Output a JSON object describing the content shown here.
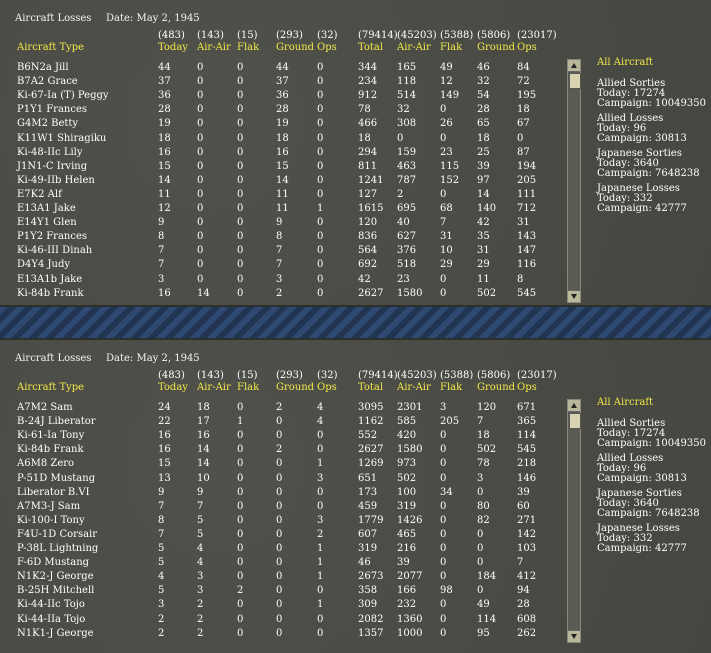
{
  "panels": [
    {
      "title": "Aircraft Losses",
      "date": "Date: May 2, 1945",
      "totals": [
        "(483)",
        "(143)",
        "(15)",
        "(293)",
        "(32)",
        "(79414)",
        "(45203)",
        "(5388)",
        "(5806)",
        "(23017)"
      ],
      "headers": [
        "Aircraft Type",
        "Today",
        "Air-Air",
        "Flak",
        "Ground",
        "Ops",
        "Total",
        "Air-Air",
        "Flak",
        "Ground",
        "Ops"
      ],
      "rows": [
        [
          "B6N2a Jill",
          "44",
          "0",
          "0",
          "44",
          "0",
          "344",
          "165",
          "49",
          "46",
          "84"
        ],
        [
          "B7A2 Grace",
          "37",
          "0",
          "0",
          "37",
          "0",
          "234",
          "118",
          "12",
          "32",
          "72"
        ],
        [
          "Ki-67-Ia (T) Peggy",
          "36",
          "0",
          "0",
          "36",
          "0",
          "912",
          "514",
          "149",
          "54",
          "195"
        ],
        [
          "P1Y1 Frances",
          "28",
          "0",
          "0",
          "28",
          "0",
          "78",
          "32",
          "0",
          "28",
          "18"
        ],
        [
          "G4M2 Betty",
          "19",
          "0",
          "0",
          "19",
          "0",
          "466",
          "308",
          "26",
          "65",
          "67"
        ],
        [
          "K11W1 Shiragiku",
          "18",
          "0",
          "0",
          "18",
          "0",
          "18",
          "0",
          "0",
          "18",
          "0"
        ],
        [
          "Ki-48-IIc Lily",
          "16",
          "0",
          "0",
          "16",
          "0",
          "294",
          "159",
          "23",
          "25",
          "87"
        ],
        [
          "J1N1-C Irving",
          "15",
          "0",
          "0",
          "15",
          "0",
          "811",
          "463",
          "115",
          "39",
          "194"
        ],
        [
          "Ki-49-IIb Helen",
          "14",
          "0",
          "0",
          "14",
          "0",
          "1241",
          "787",
          "152",
          "97",
          "205"
        ],
        [
          "E7K2 Alf",
          "11",
          "0",
          "0",
          "11",
          "0",
          "127",
          "2",
          "0",
          "14",
          "111"
        ],
        [
          "E13A1 Jake",
          "12",
          "0",
          "0",
          "11",
          "1",
          "1615",
          "695",
          "68",
          "140",
          "712"
        ],
        [
          "E14Y1 Glen",
          "9",
          "0",
          "0",
          "9",
          "0",
          "120",
          "40",
          "7",
          "42",
          "31"
        ],
        [
          "P1Y2 Frances",
          "8",
          "0",
          "0",
          "8",
          "0",
          "836",
          "627",
          "31",
          "35",
          "143"
        ],
        [
          "Ki-46-III Dinah",
          "7",
          "0",
          "0",
          "7",
          "0",
          "564",
          "376",
          "10",
          "31",
          "147"
        ],
        [
          "D4Y4 Judy",
          "7",
          "0",
          "0",
          "7",
          "0",
          "692",
          "518",
          "29",
          "29",
          "116"
        ],
        [
          "E13A1b Jake",
          "3",
          "0",
          "0",
          "3",
          "0",
          "42",
          "23",
          "0",
          "11",
          "8"
        ],
        [
          "Ki-84b Frank",
          "16",
          "14",
          "0",
          "2",
          "0",
          "2627",
          "1580",
          "0",
          "502",
          "545"
        ]
      ],
      "side": {
        "all": "All Aircraft",
        "allied_sorties": "Allied Sorties",
        "allied_sorties_today": "Today:  17274",
        "allied_sorties_campaign": "Campaign: 10049350",
        "allied_losses": "Allied Losses",
        "allied_losses_today": "Today:  96",
        "allied_losses_campaign": "Campaign: 30813",
        "jap_sorties": "Japanese Sorties",
        "jap_sorties_today": "Today:   3640",
        "jap_sorties_campaign": "Campaign: 7648238",
        "jap_losses": "Japanese Losses",
        "jap_losses_today": "Today:   332",
        "jap_losses_campaign": "Campaign: 42777"
      }
    },
    {
      "title": "Aircraft Losses",
      "date": "Date: May 2, 1945",
      "totals": [
        "(483)",
        "(143)",
        "(15)",
        "(293)",
        "(32)",
        "(79414)",
        "(45203)",
        "(5388)",
        "(5806)",
        "(23017)"
      ],
      "headers": [
        "Aircraft Type",
        "Today",
        "Air-Air",
        "Flak",
        "Ground",
        "Ops",
        "Total",
        "Air-Air",
        "Flak",
        "Ground",
        "Ops"
      ],
      "rows": [
        [
          "A7M2 Sam",
          "24",
          "18",
          "0",
          "2",
          "4",
          "3095",
          "2301",
          "3",
          "120",
          "671"
        ],
        [
          "B-24J Liberator",
          "22",
          "17",
          "1",
          "0",
          "4",
          "1162",
          "585",
          "205",
          "7",
          "365"
        ],
        [
          "Ki-61-Ia Tony",
          "16",
          "16",
          "0",
          "0",
          "0",
          "552",
          "420",
          "0",
          "18",
          "114"
        ],
        [
          "Ki-84b Frank",
          "16",
          "14",
          "0",
          "2",
          "0",
          "2627",
          "1580",
          "0",
          "502",
          "545"
        ],
        [
          "A6M8 Zero",
          "15",
          "14",
          "0",
          "0",
          "1",
          "1269",
          "973",
          "0",
          "78",
          "218"
        ],
        [
          "P-51D Mustang",
          "13",
          "10",
          "0",
          "0",
          "3",
          "651",
          "502",
          "0",
          "3",
          "146"
        ],
        [
          "Liberator B.VI",
          "9",
          "9",
          "0",
          "0",
          "0",
          "173",
          "100",
          "34",
          "0",
          "39"
        ],
        [
          "A7M3-J Sam",
          "7",
          "7",
          "0",
          "0",
          "0",
          "459",
          "319",
          "0",
          "80",
          "60"
        ],
        [
          "Ki-100-I Tony",
          "8",
          "5",
          "0",
          "0",
          "3",
          "1779",
          "1426",
          "0",
          "82",
          "271"
        ],
        [
          "F4U-1D Corsair",
          "7",
          "5",
          "0",
          "0",
          "2",
          "607",
          "465",
          "0",
          "0",
          "142"
        ],
        [
          "P-38L Lightning",
          "5",
          "4",
          "0",
          "0",
          "1",
          "319",
          "216",
          "0",
          "0",
          "103"
        ],
        [
          "F-6D Mustang",
          "5",
          "4",
          "0",
          "0",
          "1",
          "46",
          "39",
          "0",
          "0",
          "7"
        ],
        [
          "N1K2-J George",
          "4",
          "3",
          "0",
          "0",
          "1",
          "2673",
          "2077",
          "0",
          "184",
          "412"
        ],
        [
          "B-25H Mitchell",
          "5",
          "3",
          "2",
          "0",
          "0",
          "358",
          "166",
          "98",
          "0",
          "94"
        ],
        [
          "Ki-44-IIc Tojo",
          "3",
          "2",
          "0",
          "0",
          "1",
          "309",
          "232",
          "0",
          "49",
          "28"
        ],
        [
          "Ki-44-IIa Tojo",
          "2",
          "2",
          "0",
          "0",
          "0",
          "2082",
          "1360",
          "0",
          "114",
          "608"
        ],
        [
          "N1K1-J George",
          "2",
          "2",
          "0",
          "0",
          "0",
          "1357",
          "1000",
          "0",
          "95",
          "262"
        ]
      ],
      "side": {
        "all": "All Aircraft",
        "allied_sorties": "Allied Sorties",
        "allied_sorties_today": "Today:  17274",
        "allied_sorties_campaign": "Campaign: 10049350",
        "allied_losses": "Allied Losses",
        "allied_losses_today": "Today:  96",
        "allied_losses_campaign": "Campaign: 30813",
        "jap_sorties": "Japanese Sorties",
        "jap_sorties_today": "Today:   3640",
        "jap_sorties_campaign": "Campaign: 7648238",
        "jap_losses": "Japanese Losses",
        "jap_losses_today": "Today:   332",
        "jap_losses_campaign": "Campaign: 42777"
      }
    }
  ]
}
